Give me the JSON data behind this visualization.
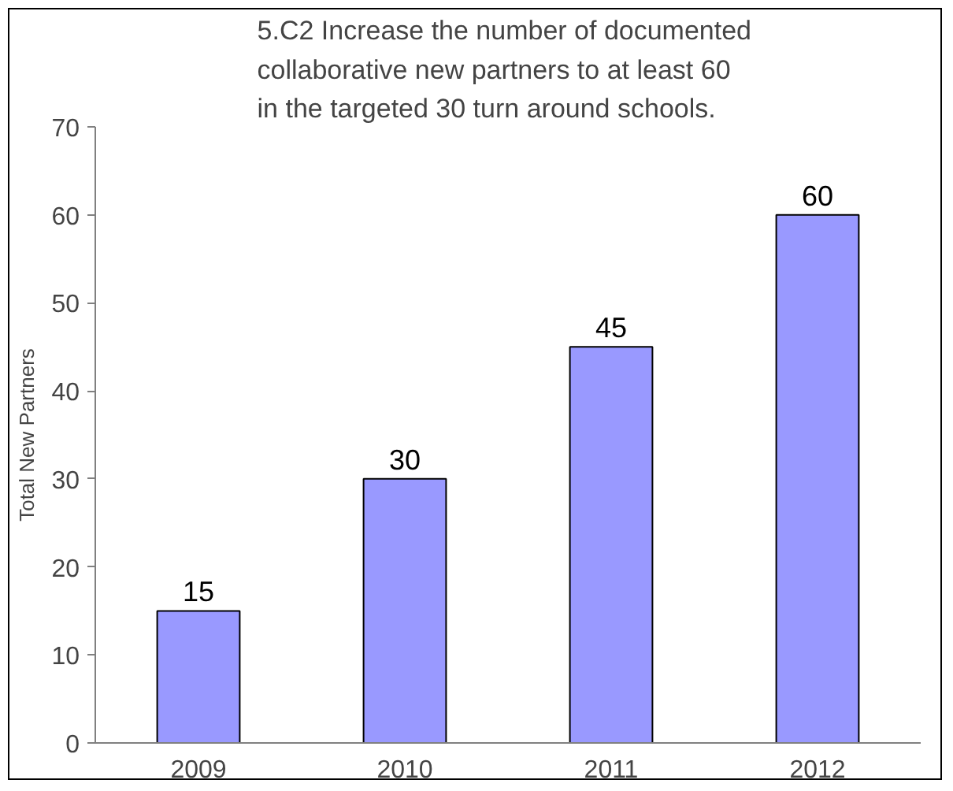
{
  "chart_data": {
    "type": "bar",
    "title": "5.C2  Increase the number of documented collaborative new partners to at least 60 in the targeted 30 turn around schools.",
    "ylabel": "Total New Partners",
    "categories": [
      "2009",
      "2010",
      "2011",
      "2012"
    ],
    "series": [
      {
        "color": "#9999ff",
        "values": [
          15,
          30,
          45,
          60
        ]
      }
    ],
    "ylim": [
      0,
      70
    ],
    "yticks": [
      0,
      10,
      20,
      30,
      40,
      50,
      60,
      70
    ],
    "grid": false,
    "data_labels": true
  }
}
